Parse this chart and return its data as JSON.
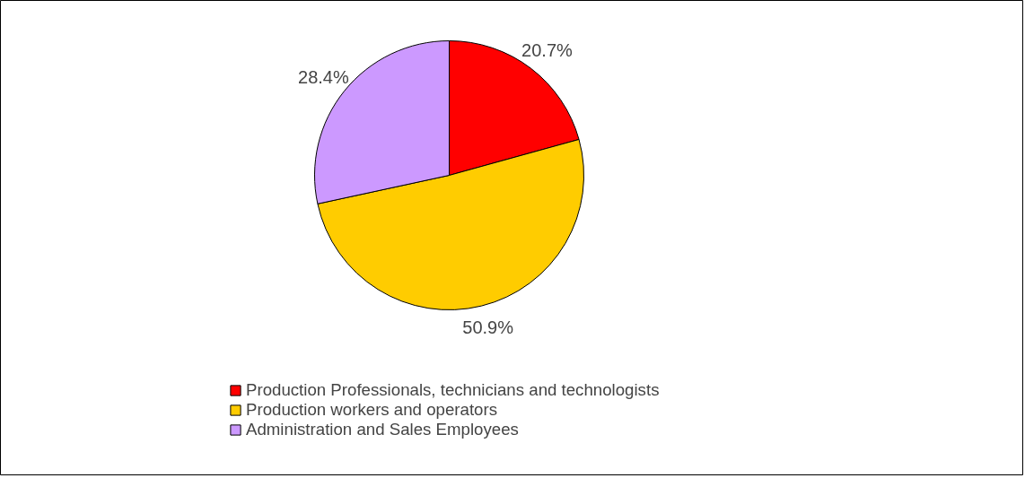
{
  "chart_data": {
    "type": "pie",
    "categories": [
      "Production Professionals, technicians and technologists",
      "Production workers and operators",
      "Administration and Sales Employees"
    ],
    "values": [
      20.7,
      50.9,
      28.4
    ],
    "colors": [
      "#ff0000",
      "#ffcc00",
      "#cc99ff"
    ],
    "value_labels": [
      "20.7%",
      "50.9%",
      "28.4%"
    ],
    "legend": "bottom"
  }
}
